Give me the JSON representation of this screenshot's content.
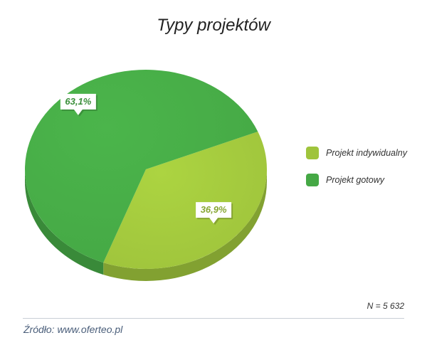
{
  "title": "Typy projektów",
  "chart_data": {
    "type": "pie",
    "title": "Typy projektów",
    "series": [
      {
        "name": "Projekt indywidualny",
        "value": 36.9,
        "label": "36,9%",
        "color": "#9fc43c"
      },
      {
        "name": "Projekt gotowy",
        "value": 63.1,
        "label": "63,1%",
        "color": "#45a845"
      }
    ],
    "legend_position": "right"
  },
  "legend": [
    {
      "label": "Projekt indywidualny",
      "color": "#9fc43c"
    },
    {
      "label": "Projekt gotowy",
      "color": "#45a845"
    }
  ],
  "n_label": "N = 5 632",
  "source": "Źródło: www.oferteo.pl"
}
